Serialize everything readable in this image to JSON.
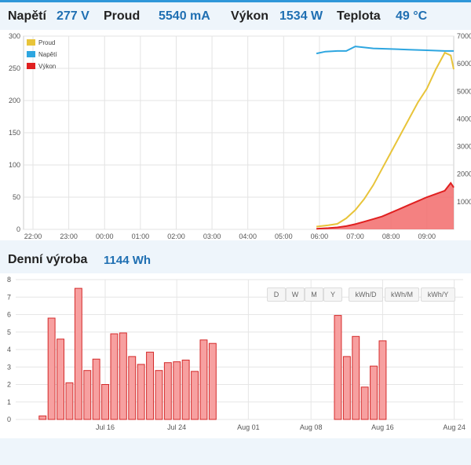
{
  "stats": {
    "voltage_label": "Napětí",
    "voltage_value": "277 V",
    "current_label": "Proud",
    "current_value": "5540 mA",
    "power_label": "Výkon",
    "power_value": "1534 W",
    "temp_label": "Teplota",
    "temp_value": "49 °C"
  },
  "daily": {
    "label": "Denní výroba",
    "value": "1144 Wh"
  },
  "buttons": [
    "D",
    "W",
    "M",
    "Y",
    "kWh/D",
    "kWh/M",
    "kWh/Y"
  ],
  "colors": {
    "accent": "#1f6fb2",
    "proud": "#e8c43a",
    "napeti": "#2ea6e0",
    "vykon": "#e02020"
  },
  "chart_data": [
    {
      "type": "line",
      "x_ticks": [
        "22:00",
        "23:00",
        "00:00",
        "01:00",
        "02:00",
        "03:00",
        "04:00",
        "05:00",
        "06:00",
        "07:00",
        "08:00",
        "09:00"
      ],
      "y_left_ticks": [
        0,
        50,
        100,
        150,
        200,
        250,
        300
      ],
      "y_right_ticks": [
        "1000",
        "2000",
        "3000",
        "4000",
        "5000",
        "6000",
        "7000"
      ],
      "legend": [
        "Proud",
        "Napětí",
        "Výkon"
      ],
      "series": [
        {
          "name": "Napětí",
          "axis": "left",
          "x": [
            "05:55",
            "06:10",
            "06:30",
            "06:45",
            "07:00",
            "07:30",
            "08:00",
            "08:30",
            "09:00",
            "09:30",
            "09:45"
          ],
          "y": [
            273,
            276,
            277,
            277,
            284,
            281,
            280,
            279,
            278,
            277,
            277
          ]
        },
        {
          "name": "Proud",
          "axis": "right",
          "x": [
            "05:55",
            "06:15",
            "06:30",
            "06:45",
            "07:00",
            "07:15",
            "07:30",
            "07:45",
            "08:00",
            "08:15",
            "08:30",
            "08:45",
            "09:00",
            "09:15",
            "09:30",
            "09:40",
            "09:45"
          ],
          "y": [
            100,
            150,
            200,
            400,
            700,
            1100,
            1600,
            2200,
            2800,
            3400,
            4000,
            4600,
            5100,
            5800,
            6400,
            6300,
            5800
          ]
        },
        {
          "name": "Výkon",
          "axis": "left",
          "x": [
            "05:55",
            "06:15",
            "06:30",
            "06:45",
            "07:00",
            "07:15",
            "07:30",
            "07:45",
            "08:00",
            "08:15",
            "08:30",
            "08:45",
            "09:00",
            "09:15",
            "09:30",
            "09:40",
            "09:45"
          ],
          "y": [
            1,
            2,
            3,
            5,
            8,
            12,
            16,
            20,
            26,
            32,
            38,
            44,
            50,
            55,
            60,
            72,
            65
          ]
        }
      ]
    },
    {
      "type": "bar",
      "x_ticks": [
        "Jul 16",
        "Jul 24",
        "Aug 01",
        "Aug 08",
        "Aug 16",
        "Aug 24"
      ],
      "y_ticks": [
        0,
        1,
        2,
        3,
        4,
        5,
        6,
        7,
        8
      ],
      "series": [
        {
          "name": "",
          "x": [
            "Jul 09",
            "Jul 10",
            "Jul 11",
            "Jul 12",
            "Jul 13",
            "Jul 14",
            "Jul 15",
            "Jul 16",
            "Jul 17",
            "Jul 18",
            "Jul 19",
            "Jul 20",
            "Jul 21",
            "Jul 22",
            "Jul 23",
            "Jul 24",
            "Jul 25",
            "Jul 26",
            "Jul 27",
            "Jul 28",
            "Jul 29",
            "Aug 11",
            "Aug 12",
            "Aug 13",
            "Aug 14",
            "Aug 15",
            "Aug 16"
          ],
          "y": [
            0.2,
            5.8,
            4.6,
            2.1,
            7.5,
            2.8,
            3.45,
            2.0,
            4.9,
            4.95,
            3.6,
            3.15,
            3.85,
            2.8,
            3.25,
            3.3,
            3.4,
            2.75,
            4.55,
            4.35,
            0,
            5.95,
            3.6,
            4.75,
            1.85,
            3.05,
            4.5
          ]
        }
      ]
    }
  ]
}
